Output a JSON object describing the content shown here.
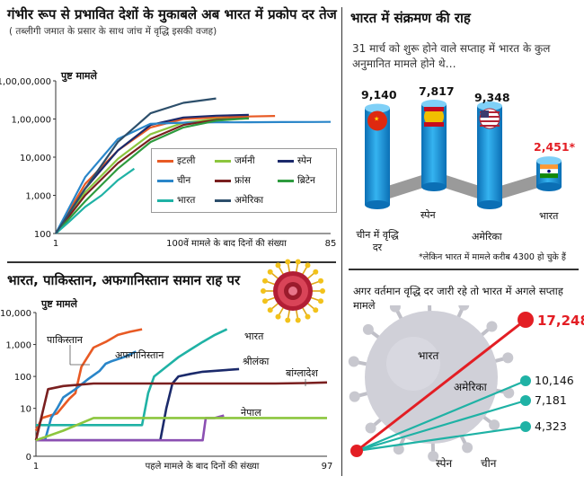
{
  "chart_data": [
    {
      "type": "line",
      "title": "गंभीर रूप से प्रभावित देशों के मुकाबले अब भारत में प्रकोप दर तेज",
      "subtitle": "( तब्लीगी जमात के प्रसार के साथ जांच में वृद्धि इसकी वजह)",
      "ylabel": "पुष्ट मामले",
      "xlabel": "100वें मामले के बाद दिनों की संख्या",
      "y_scale": "log",
      "ylim": [
        100,
        10000000
      ],
      "xlim": [
        1,
        85
      ],
      "y_ticks": [
        "100",
        "1,000",
        "10,000",
        "1,00,000",
        "1,00,00,000"
      ],
      "x_ticks": [
        "1",
        "85"
      ],
      "legend": "center-right",
      "series": [
        {
          "name": "इटली",
          "color": "#e85a24",
          "x": [
            1,
            10,
            20,
            30,
            40,
            50,
            60,
            68
          ],
          "y": [
            100,
            2000,
            15000,
            60000,
            100000,
            120000,
            135000,
            145000
          ]
        },
        {
          "name": "जर्मनी",
          "color": "#8cc63e",
          "x": [
            1,
            10,
            20,
            30,
            40,
            50,
            60
          ],
          "y": [
            100,
            1200,
            9000,
            40000,
            80000,
            100000,
            105000
          ]
        },
        {
          "name": "स्पेन",
          "color": "#1b2a6b",
          "x": [
            1,
            10,
            20,
            30,
            40,
            50,
            60
          ],
          "y": [
            100,
            1500,
            15000,
            70000,
            120000,
            150000,
            165000
          ]
        },
        {
          "name": "चीन",
          "color": "#2a86c9",
          "x": [
            1,
            10,
            20,
            30,
            40,
            50,
            60,
            70,
            80,
            85
          ],
          "y": [
            100,
            3000,
            30000,
            75000,
            80000,
            82000,
            82500,
            83000,
            83500,
            84000
          ]
        },
        {
          "name": "फ्रांस",
          "color": "#7a1f1f",
          "x": [
            1,
            10,
            20,
            30,
            40,
            50,
            60
          ],
          "y": [
            100,
            1000,
            7000,
            30000,
            70000,
            95000,
            110000
          ]
        },
        {
          "name": "ब्रिटेन",
          "color": "#2e9b3e",
          "x": [
            1,
            10,
            20,
            30,
            40,
            50,
            60
          ],
          "y": [
            100,
            700,
            5000,
            25000,
            60000,
            90000,
            110000
          ]
        },
        {
          "name": "भारत",
          "color": "#1fb2a5",
          "x": [
            1,
            5,
            10,
            15,
            20,
            25
          ],
          "y": [
            100,
            200,
            500,
            1000,
            2500,
            5000
          ]
        },
        {
          "name": "अमेरिका",
          "color": "#2d4f6b",
          "x": [
            1,
            10,
            20,
            30,
            40,
            50
          ],
          "y": [
            100,
            1500,
            25000,
            200000,
            700000,
            1200000
          ]
        }
      ]
    },
    {
      "type": "line",
      "title": "भारत, पाकिस्तान, अफगानिस्तान समान राह पर",
      "ylabel": "पुष्ट मामले",
      "xlabel": "पहले मामले के बाद दिनों की संख्या",
      "y_scale": "log",
      "ylim": [
        0,
        10000
      ],
      "xlim": [
        1,
        97
      ],
      "y_ticks": [
        "0",
        "10",
        "100",
        "1,000",
        "10,000"
      ],
      "x_ticks": [
        "1",
        "97"
      ],
      "series": [
        {
          "name": "पाकिस्तान",
          "color": "#e85a24",
          "x": [
            1,
            3,
            8,
            12,
            14,
            16,
            20,
            24,
            28,
            32,
            36
          ],
          "y": [
            2,
            5,
            7,
            20,
            30,
            200,
            800,
            1200,
            2000,
            2500,
            3000
          ]
        },
        {
          "name": "अफगानिस्तान",
          "color": "#2a86c9",
          "x": [
            1,
            4,
            6,
            8,
            10,
            14,
            18,
            22,
            24,
            26,
            30,
            34
          ],
          "y": [
            1,
            1,
            5,
            10,
            22,
            40,
            80,
            150,
            250,
            300,
            400,
            600
          ]
        },
        {
          "name": "भारत",
          "color": "#1fb2a5",
          "x": [
            1,
            20,
            30,
            36,
            38,
            40,
            44,
            48,
            52,
            56,
            60,
            64
          ],
          "y": [
            3,
            3,
            3,
            3,
            30,
            100,
            200,
            400,
            700,
            1200,
            2000,
            3000
          ]
        },
        {
          "name": "श्रीलंका",
          "color": "#1b2a6b",
          "x": [
            1,
            40,
            42,
            44,
            46,
            48,
            52,
            56,
            60,
            64,
            68
          ],
          "y": [
            1,
            1,
            1,
            10,
            60,
            100,
            120,
            140,
            150,
            160,
            170
          ]
        },
        {
          "name": "बांग्लादेश",
          "color": "#7a1f1f",
          "x": [
            1,
            5,
            10,
            20,
            40,
            60,
            80,
            90,
            97
          ],
          "y": [
            1,
            40,
            50,
            60,
            60,
            60,
            60,
            62,
            65
          ]
        },
        {
          "name": "नेपाल",
          "color": "#8b4fb2",
          "x": [
            1,
            20,
            40,
            50,
            56,
            57,
            60,
            63
          ],
          "y": [
            1,
            1,
            1,
            1,
            1,
            5,
            5,
            6
          ]
        },
        {
          "name": "",
          "color": "#8cc63e",
          "x": [
            1,
            10,
            20,
            30,
            50,
            70,
            80,
            97
          ],
          "y": [
            1,
            2,
            5,
            5,
            5,
            5,
            5,
            5
          ]
        }
      ]
    },
    {
      "type": "bar",
      "title": "भारत में संक्रमण की राह",
      "subtitle": "31 मार्च को शुरू होने वाले सप्ताह में भारत के कुल अनुमानित मामले होने थे…",
      "categories": [
        "चीन में वृद्धि दर",
        "स्पेन",
        "अमेरिका",
        "भारत"
      ],
      "value_labels": [
        "9,140",
        "7,817",
        "9,348",
        "2,451*"
      ],
      "values": [
        9140,
        7817,
        9348,
        2451
      ],
      "note": "*लेकिन भारत में मामले करीब 4300 हो चुके हैं"
    },
    {
      "type": "line",
      "title": "अगर वर्तमान वृद्धि दर जारी रहे तो भारत में अगले सप्ताह मामले",
      "categories": [
        "भारत",
        "अमेरिका",
        "स्पेन",
        "चीन"
      ],
      "value_labels": [
        "17,248",
        "10,146",
        "7,181",
        "4,323"
      ],
      "values": [
        17248,
        10146,
        7181,
        4323
      ]
    }
  ],
  "colors": {
    "accent_red": "#e31e24",
    "teal": "#1fb2a5",
    "bar_blue": "#1a8fd6",
    "virus_gray": "#c8c8cf"
  }
}
